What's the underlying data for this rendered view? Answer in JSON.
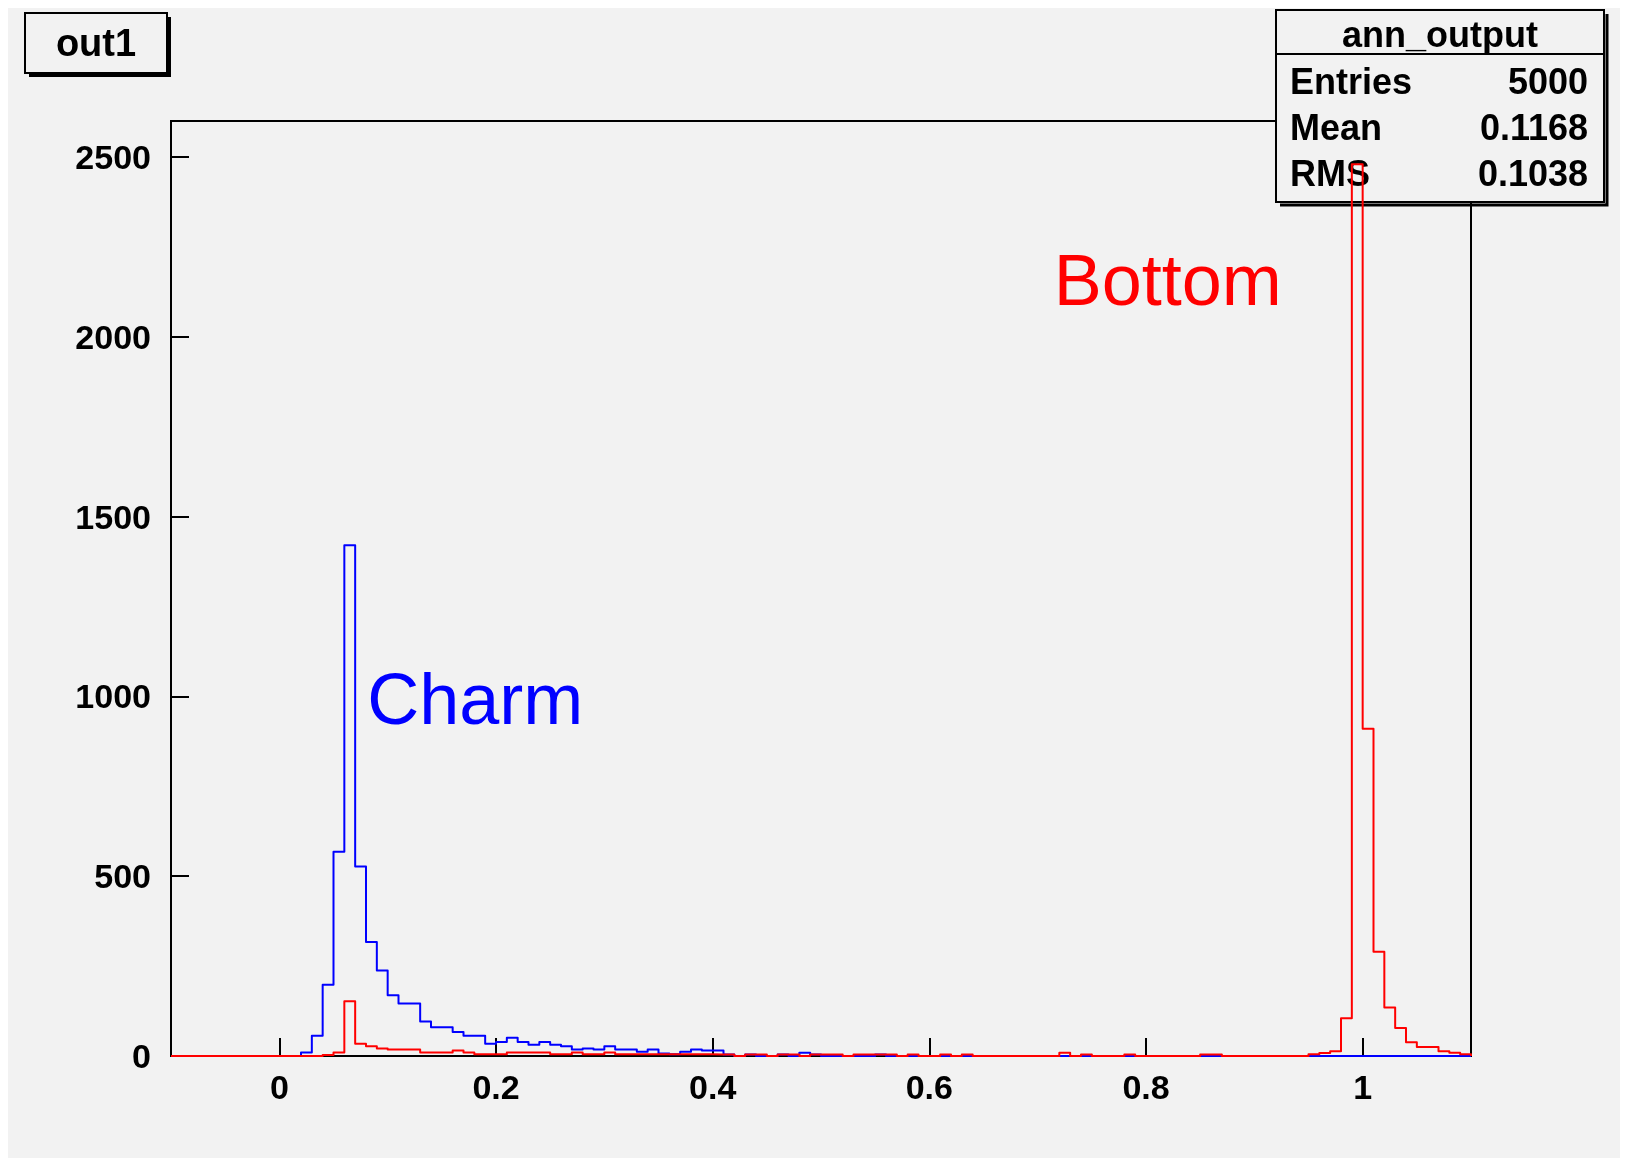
{
  "chart_data": {
    "type": "histogram",
    "title": "out1",
    "bins": [
      -0.1,
      -0.09,
      -0.08,
      -0.07,
      -0.06,
      -0.05,
      -0.04,
      -0.03,
      -0.02,
      -0.01,
      0,
      0.01,
      0.02,
      0.03,
      0.04,
      0.05,
      0.06,
      0.07,
      0.08,
      0.09,
      0.1,
      0.11,
      0.12,
      0.13,
      0.14,
      0.15,
      0.16,
      0.17,
      0.18,
      0.19,
      0.2,
      0.21,
      0.22,
      0.23,
      0.24,
      0.25,
      0.26,
      0.27,
      0.28,
      0.29,
      0.3,
      0.31,
      0.32,
      0.33,
      0.34,
      0.35,
      0.36,
      0.37,
      0.38,
      0.39,
      0.4,
      0.41,
      0.42,
      0.43,
      0.44,
      0.45,
      0.46,
      0.47,
      0.48,
      0.49,
      0.5,
      0.51,
      0.52,
      0.53,
      0.54,
      0.55,
      0.56,
      0.57,
      0.58,
      0.59,
      0.6,
      0.61,
      0.62,
      0.63,
      0.64,
      0.65,
      0.66,
      0.67,
      0.68,
      0.69,
      0.7,
      0.71,
      0.72,
      0.73,
      0.74,
      0.75,
      0.76,
      0.77,
      0.78,
      0.79,
      0.8,
      0.81,
      0.82,
      0.83,
      0.84,
      0.85,
      0.86,
      0.87,
      0.88,
      0.89,
      0.9,
      0.91,
      0.92,
      0.93,
      0.94,
      0.95,
      0.96,
      0.97,
      0.98,
      0.99,
      1,
      1.01,
      1.02,
      1.03,
      1.04,
      1.05,
      1.06,
      1.07,
      1.08,
      1.09,
      1.1
    ],
    "series": [
      {
        "name": "Charm",
        "color": "#0000ff",
        "values": [
          0,
          0,
          0,
          0,
          0,
          0,
          0,
          0,
          0,
          0,
          0,
          0,
          10,
          56,
          198,
          568,
          1420,
          527,
          317,
          238,
          169,
          146,
          146,
          96,
          80,
          80,
          67,
          56,
          56,
          34,
          39,
          51,
          39,
          31,
          39,
          31,
          27,
          18,
          21,
          18,
          27,
          18,
          18,
          12,
          18,
          7,
          5,
          12,
          18,
          15,
          15,
          4,
          0,
          4,
          0,
          0,
          4,
          0,
          9,
          4,
          0,
          0,
          0,
          0,
          0,
          4,
          0,
          0,
          0,
          0,
          0,
          0,
          0,
          0,
          0,
          0,
          0,
          0,
          0,
          0,
          0,
          0,
          0,
          0,
          0,
          0,
          0,
          0,
          0,
          0,
          0,
          0,
          0,
          0,
          0,
          0,
          0,
          0,
          0,
          0,
          0,
          0,
          0,
          0,
          0,
          0,
          0,
          0,
          0,
          0,
          0,
          0,
          0,
          0,
          0,
          0,
          0,
          0,
          0,
          0
        ]
      },
      {
        "name": "Bottom",
        "color": "#ff0000",
        "values": [
          0,
          0,
          0,
          0,
          0,
          0,
          0,
          0,
          0,
          0,
          0,
          0,
          0,
          0,
          3,
          10,
          152,
          34,
          27,
          21,
          18,
          18,
          18,
          10,
          10,
          10,
          15,
          10,
          5,
          5,
          5,
          10,
          10,
          10,
          10,
          5,
          5,
          10,
          5,
          5,
          10,
          5,
          5,
          5,
          5,
          5,
          5,
          5,
          5,
          5,
          4,
          4,
          0,
          4,
          4,
          0,
          4,
          4,
          0,
          4,
          4,
          4,
          0,
          4,
          4,
          4,
          4,
          0,
          4,
          0,
          0,
          4,
          0,
          4,
          0,
          0,
          0,
          0,
          0,
          0,
          0,
          0,
          9,
          0,
          4,
          0,
          0,
          0,
          4,
          0,
          0,
          0,
          0,
          0,
          0,
          4,
          4,
          0,
          0,
          0,
          0,
          0,
          0,
          0,
          0,
          5,
          8,
          13,
          105,
          2480,
          910,
          290,
          135,
          78,
          38,
          25,
          25,
          13,
          9,
          5
        ]
      }
    ],
    "xlim": [
      -0.1,
      1.1
    ],
    "xticks": [
      0,
      0.2,
      0.4,
      0.6,
      0.8,
      1
    ],
    "ylim": [
      0,
      2600
    ],
    "yticks": [
      0,
      500,
      1000,
      1500,
      2000,
      2500
    ],
    "annotations": [
      "ann_output",
      "Entries",
      "5000",
      "Mean",
      "0.1168",
      "RMS",
      "0.1038"
    ],
    "grid": false,
    "legend": false
  }
}
